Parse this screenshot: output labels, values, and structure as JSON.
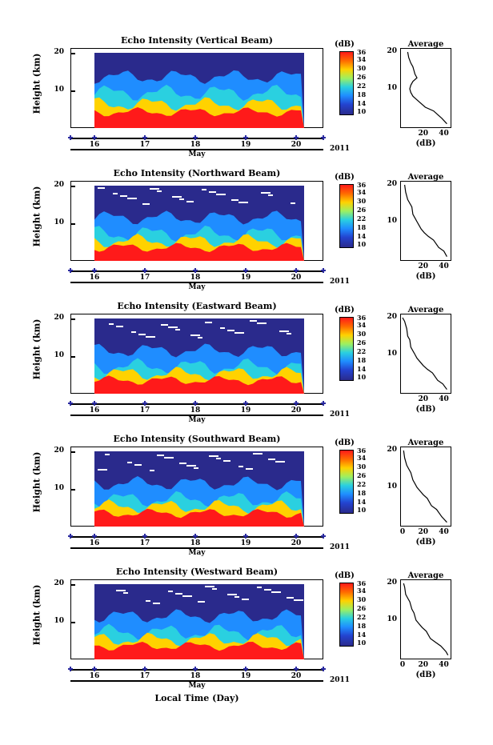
{
  "figure": {
    "x_title": "Local Time (Day)",
    "month_label": "May",
    "year_label": "2011",
    "y_title": "Height (km)",
    "colorbar_unit": "(dB)",
    "colorbar_ticks": [
      "36",
      "34",
      "30",
      "26",
      "22",
      "18",
      "14",
      "10"
    ],
    "avg_title": "Average",
    "avg_xlabel": "(dB)"
  },
  "colors": {
    "low": "#2a2a8c",
    "mid_low": "#1f8dff",
    "mid": "#2ad0e0",
    "mid_high": "#ffd200",
    "high": "#ff1a1a"
  },
  "chart_data": [
    {
      "type": "heatmap",
      "title": "Echo Intensity (Vertical Beam)",
      "xlabel": "Local Time (Day)",
      "ylabel": "Height (km)",
      "x_ticks": [
        "16",
        "17",
        "18",
        "19",
        "20"
      ],
      "y_ticks": [
        "10",
        "20"
      ],
      "ylim": [
        0,
        20
      ],
      "colorbar": {
        "label": "(dB)",
        "range": [
          10,
          36
        ],
        "ticks": [
          36,
          34,
          30,
          26,
          22,
          18,
          14,
          10
        ]
      },
      "average_profile": {
        "title": "Average",
        "xlabel": "(dB)",
        "x_ticks": [
          "20",
          "40"
        ],
        "y_ticks": [
          "10",
          "20"
        ],
        "xlim": [
          0,
          45
        ],
        "ylim": [
          0,
          20
        ],
        "x": [
          5,
          6,
          8,
          10,
          11,
          12,
          14,
          10,
          8,
          7,
          8,
          10,
          14,
          22,
          30,
          38,
          43
        ],
        "y": [
          20,
          18.5,
          17,
          16,
          15,
          14,
          13,
          12,
          11,
          10,
          9,
          8,
          7,
          5,
          4,
          2,
          0.5
        ]
      }
    },
    {
      "type": "heatmap",
      "title": "Echo Intensity (Northward Beam)",
      "xlabel": "Local Time (Day)",
      "ylabel": "Height (km)",
      "x_ticks": [
        "16",
        "17",
        "18",
        "19",
        "20"
      ],
      "y_ticks": [
        "10",
        "20"
      ],
      "ylim": [
        0,
        20
      ],
      "colorbar": {
        "label": "(dB)",
        "range": [
          10,
          36
        ],
        "ticks": [
          36,
          34,
          30,
          26,
          22,
          18,
          14,
          10
        ]
      },
      "average_profile": {
        "title": "Average",
        "xlabel": "(dB)",
        "x_ticks": [
          "20",
          "40"
        ],
        "y_ticks": [
          "10",
          "20"
        ],
        "xlim": [
          0,
          45
        ],
        "ylim": [
          0,
          20
        ],
        "x": [
          2,
          3,
          5,
          7,
          9,
          10,
          12,
          14,
          16,
          18,
          21,
          25,
          30,
          35,
          40,
          43
        ],
        "y": [
          20,
          18,
          16,
          15,
          14,
          12,
          11,
          10,
          9,
          8,
          7,
          6,
          5,
          3,
          2,
          0.5
        ]
      }
    },
    {
      "type": "heatmap",
      "title": "Echo Intensity (Eastward Beam)",
      "xlabel": "Local Time (Day)",
      "ylabel": "Height (km)",
      "x_ticks": [
        "16",
        "17",
        "18",
        "19",
        "20"
      ],
      "y_ticks": [
        "10",
        "20"
      ],
      "ylim": [
        0,
        20
      ],
      "colorbar": {
        "label": "(dB)",
        "range": [
          10,
          36
        ],
        "ticks": [
          36,
          34,
          30,
          26,
          22,
          18,
          14,
          10
        ]
      },
      "average_profile": {
        "title": "Average",
        "xlabel": "(dB)",
        "x_ticks": [
          "20",
          "40"
        ],
        "y_ticks": [
          "10",
          "20"
        ],
        "xlim": [
          0,
          45
        ],
        "ylim": [
          0,
          20
        ],
        "x": [
          0,
          2,
          4,
          5,
          7,
          8,
          10,
          12,
          14,
          17,
          20,
          24,
          29,
          34,
          39,
          43
        ],
        "y": [
          20,
          19,
          17,
          15,
          14,
          12,
          11,
          10,
          9,
          8,
          7,
          6,
          5,
          3,
          2,
          0.5
        ]
      }
    },
    {
      "type": "heatmap",
      "title": "Echo Intensity (Southward Beam)",
      "xlabel": "Local Time (Day)",
      "ylabel": "Height (km)",
      "x_ticks": [
        "16",
        "17",
        "18",
        "19",
        "20"
      ],
      "y_ticks": [
        "10",
        "20"
      ],
      "ylim": [
        0,
        20
      ],
      "colorbar": {
        "label": "(dB)",
        "range": [
          10,
          36
        ],
        "ticks": [
          36,
          34,
          30,
          26,
          22,
          18,
          14,
          10
        ]
      },
      "average_profile": {
        "title": "Average",
        "xlabel": "(dB)",
        "x_ticks": [
          "0",
          "20",
          "40"
        ],
        "y_ticks": [
          "10",
          "20"
        ],
        "xlim": [
          0,
          45
        ],
        "ylim": [
          0,
          20
        ],
        "x": [
          1,
          2,
          4,
          6,
          8,
          10,
          12,
          14,
          17,
          20,
          24,
          28,
          33,
          38,
          43
        ],
        "y": [
          20,
          18,
          16,
          15,
          14,
          12,
          11,
          10,
          9,
          8,
          7,
          5,
          4,
          2,
          0.5
        ]
      }
    },
    {
      "type": "heatmap",
      "title": "Echo Intensity (Westward Beam)",
      "xlabel": "Local Time (Day)",
      "ylabel": "Height (km)",
      "x_ticks": [
        "16",
        "17",
        "18",
        "19",
        "20"
      ],
      "y_ticks": [
        "10",
        "20"
      ],
      "ylim": [
        0,
        20
      ],
      "colorbar": {
        "label": "(dB)",
        "range": [
          10,
          36
        ],
        "ticks": [
          36,
          34,
          30,
          26,
          22,
          18,
          14,
          10
        ]
      },
      "average_profile": {
        "title": "Average",
        "xlabel": "(dB)",
        "x_ticks": [
          "0",
          "20",
          "40"
        ],
        "y_ticks": [
          "10",
          "20"
        ],
        "xlim": [
          0,
          45
        ],
        "ylim": [
          0,
          20
        ],
        "x": [
          1,
          2,
          3,
          5,
          7,
          9,
          11,
          13,
          16,
          19,
          23,
          27,
          32,
          37,
          42,
          44
        ],
        "y": [
          20,
          19,
          17,
          16,
          15,
          13,
          12,
          10,
          9,
          8,
          7,
          5,
          4,
          3,
          1.5,
          0.5
        ]
      }
    }
  ]
}
